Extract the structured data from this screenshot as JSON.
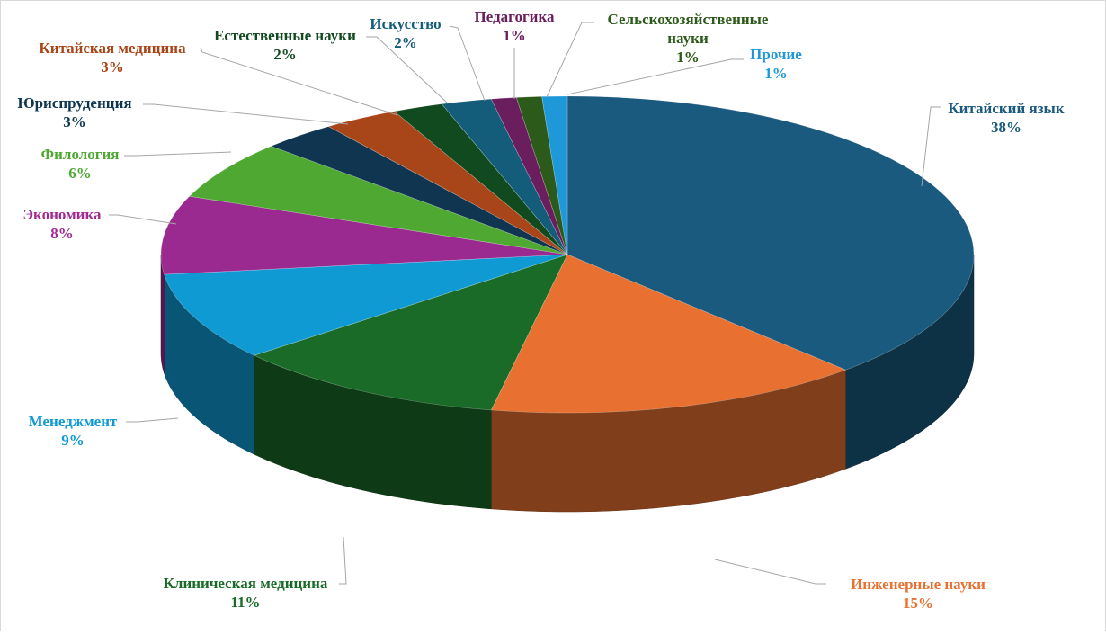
{
  "chart_data": {
    "type": "pie",
    "title": "",
    "style": "3d-exploded",
    "slices": [
      {
        "label": "Китайский язык",
        "label_lines": [
          "Китайский язык"
        ],
        "value": 38,
        "display": "38%",
        "color": "#1a5a7e"
      },
      {
        "label": "Инженерные науки",
        "label_lines": [
          "Инженерные науки"
        ],
        "value": 15,
        "display": "15%",
        "color": "#e87030"
      },
      {
        "label": "Клиническая медицина",
        "label_lines": [
          "Клиническая медицина"
        ],
        "value": 11,
        "display": "11%",
        "color": "#1a6b28"
      },
      {
        "label": "Менеджмент",
        "label_lines": [
          "Менеджмент"
        ],
        "value": 9,
        "display": "9%",
        "color": "#109ad4"
      },
      {
        "label": "Экономика",
        "label_lines": [
          "Экономика"
        ],
        "value": 8,
        "display": "8%",
        "color": "#9a2a90"
      },
      {
        "label": "Филология",
        "label_lines": [
          "Филология"
        ],
        "value": 6,
        "display": "6%",
        "color": "#4fa832"
      },
      {
        "label": "Юриспруденция",
        "label_lines": [
          "Юриспруденция"
        ],
        "value": 3,
        "display": "3%",
        "color": "#0f3550"
      },
      {
        "label": "Китайская медицина",
        "label_lines": [
          "Китайская медицина"
        ],
        "value": 3,
        "display": "3%",
        "color": "#a8461a"
      },
      {
        "label": "Естественные науки",
        "label_lines": [
          "Естественные науки"
        ],
        "value": 2,
        "display": "2%",
        "color": "#124a20"
      },
      {
        "label": "Искусство",
        "label_lines": [
          "Искусство"
        ],
        "value": 2,
        "display": "2%",
        "color": "#135c7a"
      },
      {
        "label": "Педагогика",
        "label_lines": [
          "Педагогика"
        ],
        "value": 1,
        "display": "1%",
        "color": "#6a1e5e"
      },
      {
        "label": "Сельскохозяйственные науки",
        "label_lines": [
          "Сельскохозяйственные",
          "науки"
        ],
        "value": 1,
        "display": "1%",
        "color": "#2c5a1a"
      },
      {
        "label": "Прочие",
        "label_lines": [
          "Прочие"
        ],
        "value": 1,
        "display": "1%",
        "color": "#1e98d8"
      }
    ],
    "label_colors": {
      "Китайский язык": "#1a5a7e",
      "Инженерные науки": "#e87030",
      "Клиническая медицина": "#1a6b28",
      "Менеджмент": "#109ad4",
      "Экономика": "#a02a92",
      "Филология": "#4fa832",
      "Юриспруденция": "#0f3550",
      "Китайская медицина": "#a8461a",
      "Естественные науки": "#124a20",
      "Искусство": "#135c7a",
      "Педагогика": "#6a1e5e",
      "Сельскохозяйственные науки": "#2c5a1a",
      "Прочие": "#1e98d8"
    },
    "legend": "none",
    "data_labels": "outside-with-leader-lines"
  }
}
